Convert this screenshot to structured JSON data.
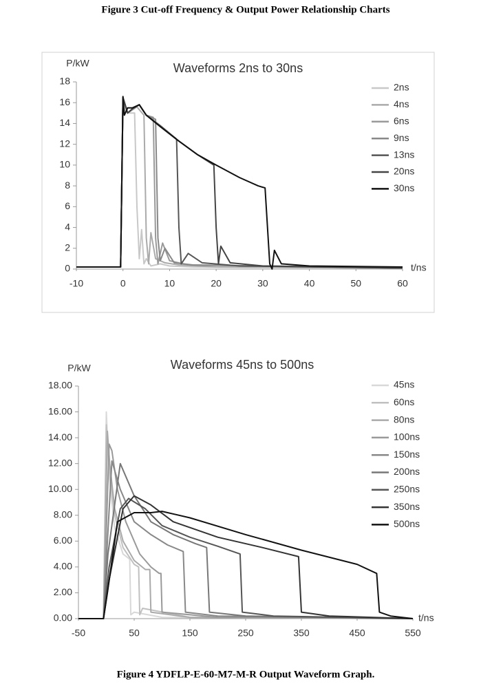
{
  "captions": [
    "Figure 3 Cut-off Frequency & Output Power Relationship Charts",
    "Figure 4 YDFLP-E-60-M7-M-R Output Waveform Graph."
  ],
  "chart_data": [
    {
      "type": "line",
      "title": "Waveforms 2ns to 30ns",
      "y_label": "P/kW",
      "x_label": "t/ns",
      "xlim": [
        -10,
        60
      ],
      "xticks": [
        -10,
        0,
        10,
        20,
        30,
        40,
        50,
        60
      ],
      "ylim": [
        0,
        18
      ],
      "yticks": [
        0,
        2,
        4,
        6,
        8,
        10,
        12,
        14,
        16,
        18
      ],
      "series": [
        {
          "name": "2ns",
          "color": "#c8c8c8",
          "x": [
            -10,
            -0.5,
            0,
            0.5,
            1.5,
            2.5,
            3,
            3.5,
            4,
            4.5,
            5,
            6,
            8,
            10,
            15,
            60
          ],
          "values": [
            0.2,
            0.2,
            16,
            15.2,
            15,
            15,
            6,
            1,
            3.8,
            0.5,
            1,
            0.3,
            0.5,
            0.3,
            0.2,
            0.1
          ]
        },
        {
          "name": "4ns",
          "color": "#aaaaaa",
          "x": [
            -10,
            -0.5,
            0,
            1,
            2,
            3,
            4.5,
            5,
            5.5,
            6,
            7,
            9,
            12,
            20,
            60
          ],
          "values": [
            0.2,
            0.2,
            16.4,
            15,
            15.3,
            15.6,
            14.8,
            3,
            0.5,
            3.5,
            1,
            0.6,
            0.4,
            0.2,
            0.1
          ]
        },
        {
          "name": "6ns",
          "color": "#999999",
          "x": [
            -10,
            -0.5,
            0,
            1,
            2,
            3.5,
            5,
            6.5,
            7,
            7.5,
            8.5,
            10,
            14,
            60
          ],
          "values": [
            0.2,
            0.2,
            16.5,
            15,
            15.4,
            15.8,
            14.8,
            14.6,
            3,
            0.5,
            2.5,
            0.8,
            0.4,
            0.1
          ]
        },
        {
          "name": "9ns",
          "color": "#888888",
          "x": [
            -10,
            -0.5,
            0,
            1,
            2,
            3.5,
            5,
            7,
            7.5,
            8,
            9,
            11,
            15,
            60
          ],
          "values": [
            0.2,
            0.2,
            16.5,
            15,
            15.4,
            15.8,
            14.8,
            14.4,
            3,
            0.8,
            2,
            0.6,
            0.4,
            0.1
          ]
        },
        {
          "name": "13ns",
          "color": "#555555",
          "x": [
            -10,
            -0.5,
            0,
            1,
            2,
            3.5,
            5,
            8,
            11.5,
            12,
            12.5,
            14,
            17,
            25,
            60
          ],
          "values": [
            0.2,
            0.2,
            16.5,
            15,
            15.4,
            15.8,
            14.8,
            13.8,
            12.5,
            4,
            0.5,
            1.5,
            0.6,
            0.3,
            0.1
          ]
        },
        {
          "name": "20ns",
          "color": "#444444",
          "x": [
            -10,
            -0.5,
            0,
            1,
            2,
            3.5,
            5,
            8,
            12,
            16,
            19.5,
            20,
            20.5,
            21,
            23,
            30,
            60
          ],
          "values": [
            0.2,
            0.2,
            16.5,
            15,
            15.4,
            15.8,
            14.8,
            13.7,
            12.3,
            11,
            10,
            4,
            0.5,
            2.2,
            0.6,
            0.3,
            0.1
          ]
        },
        {
          "name": "30ns",
          "color": "#111111",
          "x": [
            -10,
            -0.5,
            0,
            0.3,
            1,
            2,
            3.5,
            5,
            8,
            12,
            16,
            20,
            25,
            29,
            30.5,
            31.5,
            32,
            32.5,
            34,
            40,
            60
          ],
          "values": [
            0.2,
            0.2,
            16.6,
            14.8,
            15.5,
            15.5,
            15.8,
            14.8,
            13.7,
            12.3,
            11,
            10,
            8.8,
            8,
            7.8,
            0.5,
            0,
            1.8,
            0.5,
            0.3,
            0.2
          ]
        }
      ]
    },
    {
      "type": "line",
      "title": "Waveforms 45ns to 500ns",
      "y_label": "P/kW",
      "x_label": "t/ns",
      "xlim": [
        -50,
        550
      ],
      "xticks": [
        -50,
        50,
        150,
        250,
        350,
        450,
        550
      ],
      "ylim": [
        0,
        18
      ],
      "yticks": [
        {
          "value": 0,
          "label": "0.00"
        },
        {
          "value": 2,
          "label": "2.00"
        },
        {
          "value": 4,
          "label": "4.00"
        },
        {
          "value": 6,
          "label": "6.00"
        },
        {
          "value": 8,
          "label": "8.00"
        },
        {
          "value": 10,
          "label": "10.00"
        },
        {
          "value": 12,
          "label": "12.00"
        },
        {
          "value": 14,
          "label": "14.00"
        },
        {
          "value": 16,
          "label": "16.00"
        },
        {
          "value": 18,
          "label": "18.00"
        }
      ],
      "series": [
        {
          "name": "45ns",
          "color": "#d8d8d8",
          "x": [
            -50,
            -5,
            0,
            5,
            15,
            30,
            42,
            44,
            50,
            100,
            550
          ],
          "values": [
            0,
            0,
            16,
            11,
            7,
            5,
            4.6,
            0.3,
            0.5,
            0.1,
            0
          ]
        },
        {
          "name": "60ns",
          "color": "#c0c0c0",
          "x": [
            -50,
            -5,
            0,
            5,
            15,
            30,
            50,
            58,
            60,
            65,
            150,
            550
          ],
          "values": [
            0,
            0,
            15,
            11.5,
            8,
            5.5,
            4.2,
            4,
            0.3,
            0.8,
            0.1,
            0
          ]
        },
        {
          "name": "80ns",
          "color": "#aaaaaa",
          "x": [
            -50,
            -5,
            2,
            6,
            15,
            30,
            50,
            70,
            78,
            80,
            150,
            550
          ],
          "values": [
            0,
            0,
            14.5,
            12,
            8.5,
            6,
            4.5,
            3.8,
            3.8,
            0.5,
            0.1,
            0
          ]
        },
        {
          "name": "100ns",
          "color": "#999999",
          "x": [
            -50,
            -5,
            5,
            10,
            20,
            35,
            60,
            80,
            95,
            98,
            100,
            200,
            550
          ],
          "values": [
            0,
            0,
            13.5,
            13,
            10,
            7.5,
            5,
            4,
            3.5,
            3.5,
            0.5,
            0.1,
            0
          ]
        },
        {
          "name": "150ns",
          "color": "#888888",
          "x": [
            -50,
            -5,
            2,
            10,
            25,
            50,
            80,
            110,
            138,
            142,
            200,
            550
          ],
          "values": [
            0,
            0,
            6,
            12.2,
            10,
            7.5,
            6.5,
            5.7,
            5.2,
            0.5,
            0.2,
            0
          ]
        },
        {
          "name": "200ns",
          "color": "#777777",
          "x": [
            -50,
            -5,
            3,
            25,
            50,
            80,
            120,
            160,
            180,
            185,
            250,
            550
          ],
          "values": [
            0,
            0,
            5,
            12,
            9.5,
            7.5,
            6.5,
            5.8,
            5.5,
            0.5,
            0.2,
            0
          ]
        },
        {
          "name": "250ns",
          "color": "#555555",
          "x": [
            -50,
            -5,
            5,
            25,
            40,
            70,
            100,
            150,
            200,
            240,
            244,
            300,
            550
          ],
          "values": [
            0,
            0,
            4,
            8.5,
            9.3,
            8.5,
            7.2,
            6.3,
            5.6,
            5,
            0.5,
            0.2,
            0
          ]
        },
        {
          "name": "350ns",
          "color": "#333333",
          "x": [
            -50,
            -5,
            5,
            30,
            50,
            80,
            120,
            200,
            280,
            345,
            350,
            400,
            550
          ],
          "values": [
            0,
            0,
            3,
            8.5,
            9.5,
            8.8,
            7.5,
            6.3,
            5.5,
            4.8,
            0.5,
            0.2,
            0
          ]
        },
        {
          "name": "500ns",
          "color": "#111111",
          "x": [
            -50,
            -5,
            2,
            20,
            50,
            80,
            100,
            150,
            250,
            350,
            450,
            485,
            490,
            510,
            550
          ],
          "values": [
            0,
            0,
            2,
            7.5,
            8.2,
            8.2,
            8.3,
            7.8,
            6.5,
            5.3,
            4.2,
            3.5,
            0.5,
            0.2,
            0
          ]
        }
      ]
    }
  ]
}
